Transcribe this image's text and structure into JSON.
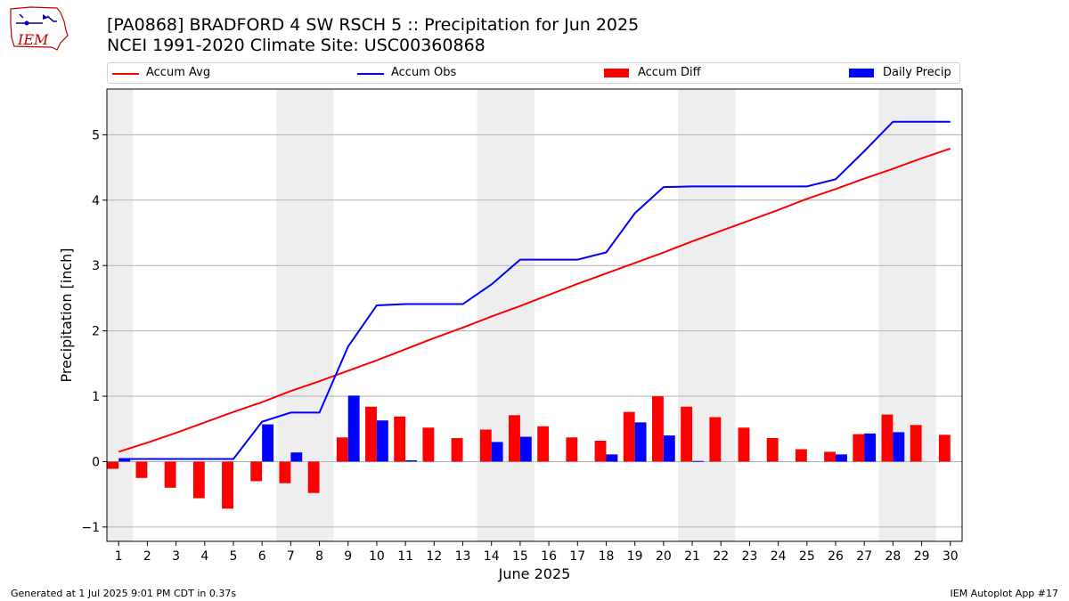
{
  "header": {
    "title": "[PA0868] BRADFORD 4 SW RSCH 5 :: Precipitation for Jun 2025",
    "subtitle": "NCEI 1991-2020 Climate Site: USC00360868"
  },
  "logo": {
    "text": "IEM"
  },
  "footer": {
    "left": "Generated at 1 Jul 2025 9:01 PM CDT in 0.37s",
    "right": "IEM Autoplot App #17"
  },
  "colors": {
    "avg": "#ff0000",
    "obs": "#0000ff",
    "diff": "#ff0000",
    "daily": "#0000ff",
    "weekend": "#eeeeee",
    "grid": "#b0b0b0"
  },
  "chart_data": {
    "type": "bar",
    "xlabel": "June 2025",
    "ylabel": "Precipitation [inch]",
    "ylim": [
      -1.22,
      5.7
    ],
    "yticks": [
      -1,
      0,
      1,
      2,
      3,
      4,
      5
    ],
    "grid": "horizontal",
    "legend": "top",
    "x": [
      1,
      2,
      3,
      4,
      5,
      6,
      7,
      8,
      9,
      10,
      11,
      12,
      13,
      14,
      15,
      16,
      17,
      18,
      19,
      20,
      21,
      22,
      23,
      24,
      25,
      26,
      27,
      28,
      29,
      30
    ],
    "shaded_days": [
      1,
      7,
      8,
      14,
      15,
      21,
      22,
      28,
      29
    ],
    "series": [
      {
        "name": "Accum Avg",
        "kind": "line",
        "values": [
          0.15,
          0.29,
          0.44,
          0.6,
          0.76,
          0.91,
          1.08,
          1.23,
          1.39,
          1.55,
          1.72,
          1.89,
          2.05,
          2.22,
          2.38,
          2.55,
          2.72,
          2.88,
          3.04,
          3.2,
          3.37,
          3.53,
          3.69,
          3.85,
          4.02,
          4.17,
          4.33,
          4.48,
          4.64,
          4.79
        ]
      },
      {
        "name": "Accum Obs",
        "kind": "line",
        "values": [
          0.04,
          0.04,
          0.04,
          0.04,
          0.04,
          0.61,
          0.75,
          0.75,
          1.76,
          2.39,
          2.41,
          2.41,
          2.41,
          2.71,
          3.09,
          3.09,
          3.09,
          3.2,
          3.8,
          4.2,
          4.21,
          4.21,
          4.21,
          4.21,
          4.21,
          4.32,
          4.75,
          5.2,
          5.2,
          5.2
        ]
      },
      {
        "name": "Accum Diff",
        "kind": "bar",
        "values": [
          -0.11,
          -0.25,
          -0.4,
          -0.56,
          -0.72,
          -0.3,
          -0.33,
          -0.48,
          0.37,
          0.84,
          0.69,
          0.52,
          0.36,
          0.49,
          0.71,
          0.54,
          0.37,
          0.32,
          0.76,
          1.0,
          0.84,
          0.68,
          0.52,
          0.36,
          0.19,
          0.15,
          0.42,
          0.72,
          0.56,
          0.41
        ]
      },
      {
        "name": "Daily Precip",
        "kind": "bar",
        "values": [
          0.04,
          0,
          0,
          0,
          0,
          0.57,
          0.14,
          0,
          1.01,
          0.63,
          0.02,
          0,
          0,
          0.3,
          0.38,
          0,
          0,
          0.11,
          0.6,
          0.4,
          0.01,
          0,
          0,
          0,
          0,
          0.11,
          0.43,
          0.45,
          0,
          0
        ]
      }
    ]
  }
}
